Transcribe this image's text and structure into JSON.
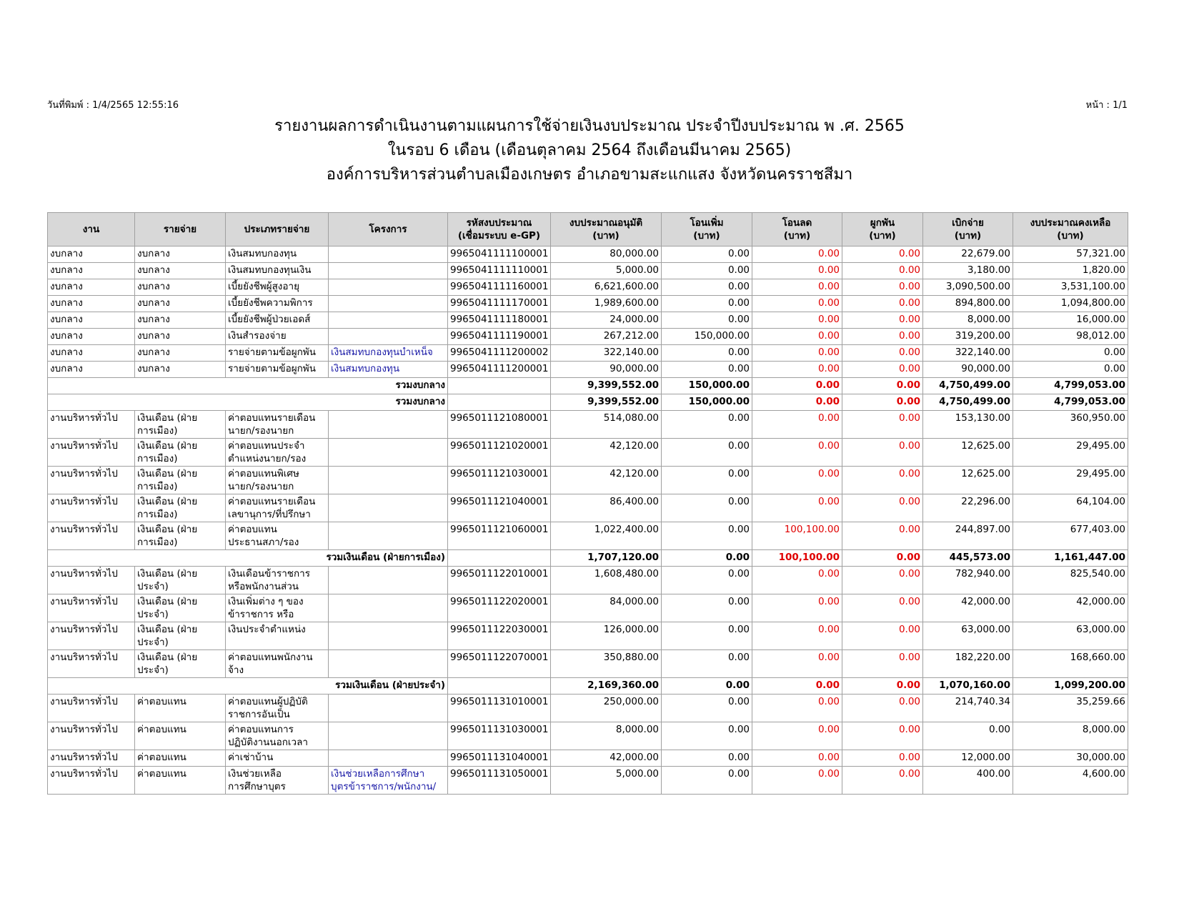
{
  "header": {
    "print_date": "วันที่พิมพ์ : 1/4/2565  12:55:16",
    "page": "หน้า : 1/1",
    "title": [
      "รายงานผลการดำเนินงานตามแผนการใช้จ่ายเงินงบประมาณ ประจำปีงบประมาณ พ .ศ. 2565",
      "ในรอบ 6 เดือน (เดือนตุลาคม 2564 ถึงเดือนมีนาคม 2565)",
      "องค์การบริหารส่วนตำบลเมืองเกษตร อำเภอขามสะแกแสง จังหวัดนครราชสีมา"
    ]
  },
  "table": {
    "columns": [
      "งาน",
      "รายจ่าย",
      "ประเภทรายจ่าย",
      "โครงการ",
      "รหัสงบประมาณ\n(เชื่อมระบบ e-GP)",
      "งบประมาณอนุมัติ\n(บาท)",
      "โอนเพิ่ม\n(บาท)",
      "โอนลด\n(บาท)",
      "ผูกพัน\n(บาท)",
      "เบิกจ่าย\n(บาท)",
      "งบประมาณคงเหลือ\n(บาท)"
    ],
    "rows": [
      {
        "cells": [
          "งบกลาง",
          "งบกลาง",
          "เงินสมทบกองทุน",
          null,
          "9965041111100001",
          "80,000.00",
          "0.00",
          "0.00",
          "0.00",
          "22,679.00",
          "57,321.00"
        ]
      },
      {
        "cells": [
          "งบกลาง",
          "งบกลาง",
          "เงินสมทบกองทุนเงิน",
          null,
          "9965041111110001",
          "5,000.00",
          "0.00",
          "0.00",
          "0.00",
          "3,180.00",
          "1,820.00"
        ]
      },
      {
        "cells": [
          "งบกลาง",
          "งบกลาง",
          "เบี้ยยังชีพผู้สูงอายุ",
          null,
          "9965041111160001",
          "6,621,600.00",
          "0.00",
          "0.00",
          "0.00",
          "3,090,500.00",
          "3,531,100.00"
        ]
      },
      {
        "cells": [
          "งบกลาง",
          "งบกลาง",
          "เบี้ยยังชีพความพิการ",
          null,
          "9965041111170001",
          "1,989,600.00",
          "0.00",
          "0.00",
          "0.00",
          "894,800.00",
          "1,094,800.00"
        ]
      },
      {
        "cells": [
          "งบกลาง",
          "งบกลาง",
          "เบี้ยยังชีพผู้ป่วยเอดส์",
          null,
          "9965041111180001",
          "24,000.00",
          "0.00",
          "0.00",
          "0.00",
          "8,000.00",
          "16,000.00"
        ]
      },
      {
        "cells": [
          "งบกลาง",
          "งบกลาง",
          "เงินสำรองจ่าย",
          null,
          "9965041111190001",
          "267,212.00",
          "150,000.00",
          "0.00",
          "0.00",
          "319,200.00",
          "98,012.00"
        ]
      },
      {
        "cells": [
          "งบกลาง",
          "งบกลาง",
          "รายจ่ายตามข้อผูกพัน",
          "เงินสมทบกองทุนบำเหน็จ",
          "9965041111200002",
          "322,140.00",
          "0.00",
          "0.00",
          "0.00",
          "322,140.00",
          "0.00"
        ]
      },
      {
        "cells": [
          "งบกลาง",
          "งบกลาง",
          "รายจ่ายตามข้อผูกพัน",
          "เงินสมทบกองทุน",
          "9965041111200001",
          "90,000.00",
          "0.00",
          "0.00",
          "0.00",
          "90,000.00",
          "0.00"
        ]
      },
      {
        "label": "รวมงบกลาง",
        "values": [
          "9,399,552.00",
          "150,000.00",
          "0.00",
          "0.00",
          "4,750,499.00",
          "4,799,053.00"
        ]
      },
      {
        "label": "รวมงบกลาง",
        "values": [
          "9,399,552.00",
          "150,000.00",
          "0.00",
          "0.00",
          "4,750,499.00",
          "4,799,053.00"
        ]
      },
      {
        "cells": [
          "งานบริหารทั่วไป",
          "เงินเดือน (ฝ่าย\nการเมือง)",
          "ค่าตอบแทนรายเดือน\nนายก/รองนายก",
          null,
          "9965011121080001",
          "514,080.00",
          "0.00",
          "0.00",
          "0.00",
          "153,130.00",
          "360,950.00"
        ]
      },
      {
        "cells": [
          "งานบริหารทั่วไป",
          "เงินเดือน (ฝ่าย\nการเมือง)",
          "ค่าตอบแทนประจำ\nตำแหน่งนายก/รอง",
          null,
          "9965011121020001",
          "42,120.00",
          "0.00",
          "0.00",
          "0.00",
          "12,625.00",
          "29,495.00"
        ]
      },
      {
        "cells": [
          "งานบริหารทั่วไป",
          "เงินเดือน (ฝ่าย\nการเมือง)",
          "ค่าตอบแทนพิเศษ\nนายก/รองนายก",
          null,
          "9965011121030001",
          "42,120.00",
          "0.00",
          "0.00",
          "0.00",
          "12,625.00",
          "29,495.00"
        ]
      },
      {
        "cells": [
          "งานบริหารทั่วไป",
          "เงินเดือน (ฝ่าย\nการเมือง)",
          "ค่าตอบแทนรายเดือน\nเลขานุการ/ที่ปรึกษา",
          null,
          "9965011121040001",
          "86,400.00",
          "0.00",
          "0.00",
          "0.00",
          "22,296.00",
          "64,104.00"
        ]
      },
      {
        "cells": [
          "งานบริหารทั่วไป",
          "เงินเดือน (ฝ่าย\nการเมือง)",
          "ค่าตอบแทน\nประธานสภา/รอง",
          null,
          "9965011121060001",
          "1,022,400.00",
          "0.00",
          "100,100.00",
          "0.00",
          "244,897.00",
          "677,403.00"
        ]
      },
      {
        "label": "รวมเงินเดือน (ฝ่ายการเมือง)",
        "values": [
          "1,707,120.00",
          "0.00",
          "100,100.00",
          "0.00",
          "445,573.00",
          "1,161,447.00"
        ]
      },
      {
        "cells": [
          "งานบริหารทั่วไป",
          "เงินเดือน (ฝ่าย\nประจำ)",
          "เงินเดือนข้าราชการ\nหรือพนักงานส่วน",
          null,
          "9965011122010001",
          "1,608,480.00",
          "0.00",
          "0.00",
          "0.00",
          "782,940.00",
          "825,540.00"
        ]
      },
      {
        "cells": [
          "งานบริหารทั่วไป",
          "เงินเดือน (ฝ่าย\nประจำ)",
          "เงินเพิ่มต่าง ๆ ของ\nข้าราชการ หรือ",
          null,
          "9965011122020001",
          "84,000.00",
          "0.00",
          "0.00",
          "0.00",
          "42,000.00",
          "42,000.00"
        ]
      },
      {
        "cells": [
          "งานบริหารทั่วไป",
          "เงินเดือน (ฝ่าย\nประจำ)",
          "เงินประจำตำแหน่ง",
          null,
          "9965011122030001",
          "126,000.00",
          "0.00",
          "0.00",
          "0.00",
          "63,000.00",
          "63,000.00"
        ]
      },
      {
        "cells": [
          "งานบริหารทั่วไป",
          "เงินเดือน (ฝ่าย\nประจำ)",
          "ค่าตอบแทนพนักงาน\nจ้าง",
          null,
          "9965011122070001",
          "350,880.00",
          "0.00",
          "0.00",
          "0.00",
          "182,220.00",
          "168,660.00"
        ]
      },
      {
        "label": "รวมเงินเดือน (ฝ่ายประจำ)",
        "values": [
          "2,169,360.00",
          "0.00",
          "0.00",
          "0.00",
          "1,070,160.00",
          "1,099,200.00"
        ]
      },
      {
        "cells": [
          "งานบริหารทั่วไป",
          "ค่าตอบแทน",
          "ค่าตอบแทนผู้ปฏิบัติ\nราชการอันเป็น",
          null,
          "9965011131010001",
          "250,000.00",
          "0.00",
          "0.00",
          "0.00",
          "214,740.34",
          "35,259.66"
        ]
      },
      {
        "cells": [
          "งานบริหารทั่วไป",
          "ค่าตอบแทน",
          "ค่าตอบแทนการ\nปฏิบัติงานนอกเวลา",
          null,
          "9965011131030001",
          "8,000.00",
          "0.00",
          "0.00",
          "0.00",
          "0.00",
          "8,000.00"
        ]
      },
      {
        "cells": [
          "งานบริหารทั่วไป",
          "ค่าตอบแทน",
          "ค่าเช่าบ้าน",
          null,
          "9965011131040001",
          "42,000.00",
          "0.00",
          "0.00",
          "0.00",
          "12,000.00",
          "30,000.00"
        ]
      },
      {
        "cells": [
          "งานบริหารทั่วไป",
          "ค่าตอบแทน",
          "เงินช่วยเหลือ\nการศึกษาบุตร",
          "เงินช่วยเหลือการศึกษา\nบุตรข้าราชการ/พนักงาน/",
          "9965011131050001",
          "5,000.00",
          "0.00",
          "0.00",
          "0.00",
          "400.00",
          "4,600.00"
        ]
      }
    ]
  }
}
